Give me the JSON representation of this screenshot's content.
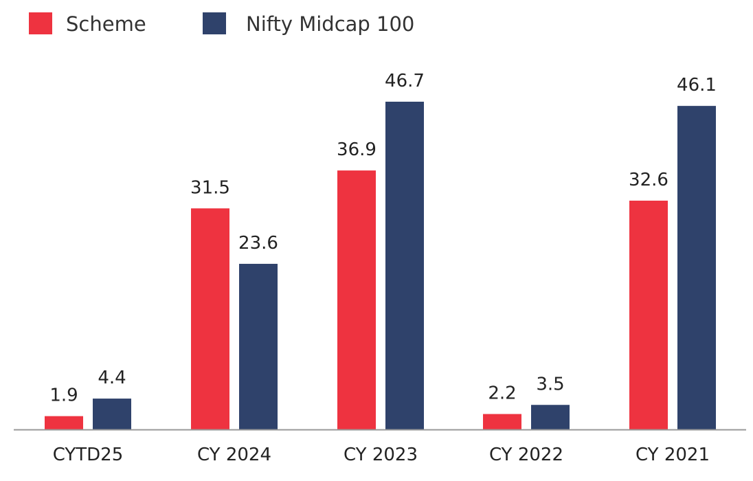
{
  "chart_data": {
    "type": "bar",
    "title": "",
    "xlabel": "",
    "ylabel": "",
    "categories": [
      "CYTD25",
      "CY 2024",
      "CY 2023",
      "CY 2022",
      "CY 2021"
    ],
    "series": [
      {
        "name": "Scheme",
        "values": [
          1.9,
          31.5,
          36.9,
          2.2,
          32.6
        ],
        "color": "#ee3340"
      },
      {
        "name": "Nifty Midcap 100",
        "values": [
          4.4,
          23.6,
          46.7,
          3.5,
          46.1
        ],
        "color": "#2f426b"
      }
    ],
    "ylim": [
      0,
      50
    ],
    "grid": false,
    "legend_position": "top-left",
    "axis_color": "#999999",
    "text_color": "#222222"
  }
}
